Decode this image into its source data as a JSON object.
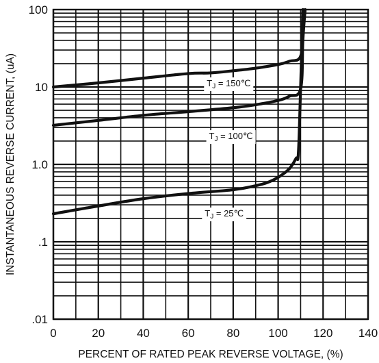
{
  "chart_data": {
    "type": "line",
    "xlabel": "PERCENT OF RATED PEAK REVERSE VOLTAGE, (%)",
    "ylabel": "INSTANTANEOUS REVERSE CURRENT, (uA)",
    "xlim": [
      0,
      140
    ],
    "ylim": [
      0.01,
      100
    ],
    "y_scale": "log",
    "grid": true,
    "x_ticks": [
      "0",
      "20",
      "40",
      "60",
      "80",
      "100",
      "120",
      "140"
    ],
    "y_ticks": [
      {
        "value": 100,
        "label": "100"
      },
      {
        "value": 10,
        "label": "10"
      },
      {
        "value": 1,
        "label": "1.0"
      },
      {
        "value": 0.1,
        "label": ".1"
      },
      {
        "value": 0.01,
        "label": ".01"
      }
    ],
    "series": [
      {
        "name": "T_J = 150℃",
        "label_sub": "J",
        "label_pre": "T",
        "label_post": " = 150℃",
        "label_at": [
          78,
          11.3
        ],
        "x": [
          0,
          20,
          40,
          60,
          70,
          80,
          90,
          100,
          105,
          110,
          111,
          112
        ],
        "y": [
          10,
          11.3,
          13.0,
          14.9,
          15.2,
          16.2,
          17.5,
          19.5,
          21.5,
          25,
          60,
          100
        ]
      },
      {
        "name": "T_J = 100℃",
        "label_sub": "J",
        "label_pre": "T",
        "label_post": " = 100℃",
        "label_at": [
          79,
          2.35
        ],
        "x": [
          0,
          20,
          40,
          60,
          80,
          90,
          100,
          105,
          110,
          111,
          112
        ],
        "y": [
          3.2,
          3.7,
          4.3,
          4.8,
          5.4,
          5.9,
          6.7,
          7.6,
          9.5,
          40,
          100
        ]
      },
      {
        "name": "T_J = 25℃",
        "label_sub": "J",
        "label_pre": "T",
        "label_post": " = 25℃",
        "label_at": [
          76,
          0.235
        ],
        "x": [
          0,
          20,
          40,
          60,
          80,
          90,
          95,
          100,
          105,
          108,
          109,
          110,
          111
        ],
        "y": [
          0.23,
          0.29,
          0.36,
          0.42,
          0.47,
          0.53,
          0.58,
          0.68,
          0.88,
          1.2,
          1.4,
          10,
          100
        ]
      }
    ]
  }
}
